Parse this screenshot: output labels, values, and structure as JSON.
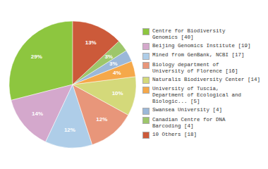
{
  "chart_data": {
    "type": "pie",
    "categories": [
      "Centre for Biodiversity\nGenomics [40]",
      "Beijing Genomics Institute [19]",
      "Mined from GenBank, NCBI [17]",
      "Biology department of\nUniversity of Florence [16]",
      "Naturalis Biodiversity Center [14]",
      "University of Tuscia,\nDepartment of Ecological and\nBiologic... [5]",
      "Swansea University [4]",
      "Canadian Centre for DNA\nBarcoding [4]",
      "10 Others [18]"
    ],
    "values": [
      29,
      14,
      12,
      12,
      10,
      4,
      3,
      3,
      13
    ],
    "value_labels": [
      "29%",
      "14%",
      "12%",
      "12%",
      "10%",
      "4%",
      "3%",
      "3%",
      "13%"
    ],
    "colors": [
      "#8DC63F",
      "#D4A8CC",
      "#AECDE8",
      "#E8967A",
      "#D4D97A",
      "#F5A84A",
      "#9BB8D9",
      "#9DC66B",
      "#CC5A3A"
    ],
    "data_labels": true,
    "legend": "right"
  }
}
